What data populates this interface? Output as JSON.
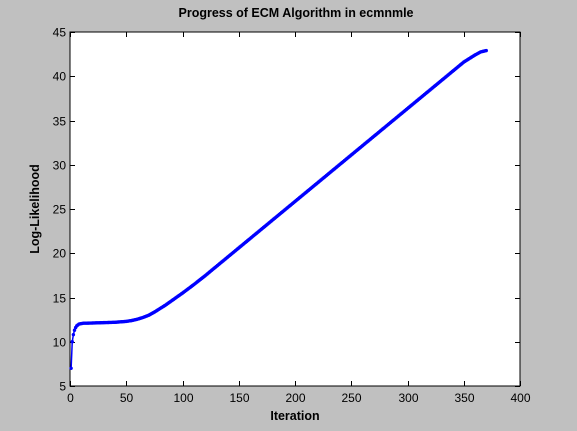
{
  "colors": {
    "figure_background": "#c0c0c0",
    "axes_background": "#ffffff",
    "line": "#0000ff"
  },
  "chart_data": {
    "type": "line",
    "title": "Progress of ECM Algorithm in ecmnmle",
    "xlabel": "Iteration",
    "ylabel": "Log-Likelihood",
    "xlim": [
      0,
      400
    ],
    "ylim": [
      5,
      45
    ],
    "xticks": [
      "0",
      "50",
      "100",
      "150",
      "200",
      "250",
      "300",
      "350",
      "400"
    ],
    "yticks": [
      "5",
      "10",
      "15",
      "20",
      "25",
      "30",
      "35",
      "40",
      "45"
    ],
    "grid": false,
    "marker": "point",
    "series": [
      {
        "x": [
          1,
          2,
          3,
          4,
          5,
          6,
          7,
          8,
          10,
          12,
          15,
          20,
          25,
          30,
          35,
          40,
          45,
          50,
          55,
          60,
          65,
          70,
          75,
          80,
          85,
          90,
          95,
          100,
          110,
          120,
          130,
          140,
          150,
          160,
          170,
          180,
          190,
          200,
          210,
          220,
          230,
          240,
          250,
          260,
          270,
          280,
          290,
          300,
          310,
          320,
          330,
          340,
          350,
          360,
          365,
          370
        ],
        "y": [
          7.0,
          10.0,
          10.8,
          11.3,
          11.6,
          11.8,
          11.9,
          12.0,
          12.05,
          12.1,
          12.1,
          12.12,
          12.14,
          12.16,
          12.18,
          12.2,
          12.25,
          12.3,
          12.4,
          12.55,
          12.75,
          13.0,
          13.35,
          13.75,
          14.15,
          14.6,
          15.05,
          15.5,
          16.45,
          17.45,
          18.5,
          19.55,
          20.6,
          21.65,
          22.7,
          23.75,
          24.8,
          25.85,
          26.9,
          27.95,
          29.0,
          30.05,
          31.1,
          32.15,
          33.2,
          34.25,
          35.3,
          36.35,
          37.4,
          38.45,
          39.5,
          40.55,
          41.6,
          42.4,
          42.75,
          42.9
        ]
      }
    ]
  }
}
